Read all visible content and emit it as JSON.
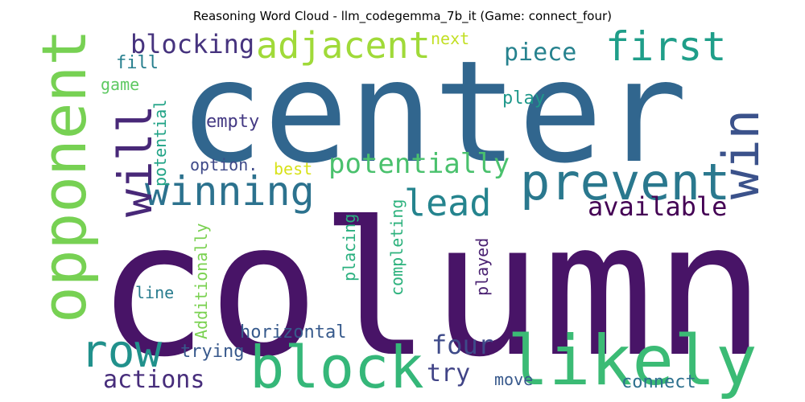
{
  "title": "Reasoning Word Cloud - llm_codegemma_7b_it (Game: connect_four)",
  "words": [
    {
      "text": "column",
      "color": "#481467"
    },
    {
      "text": "center",
      "color": "#31668e"
    },
    {
      "text": "opponent",
      "color": "#77d153"
    },
    {
      "text": "likely",
      "color": "#3bbb75"
    },
    {
      "text": "block",
      "color": "#35b779"
    },
    {
      "text": "prevent",
      "color": "#2a788e"
    },
    {
      "text": "win",
      "color": "#3b528b"
    },
    {
      "text": "winning",
      "color": "#2c728e"
    },
    {
      "text": "will",
      "color": "#482878"
    },
    {
      "text": "row",
      "color": "#21918c"
    },
    {
      "text": "first",
      "color": "#1f9e89"
    },
    {
      "text": "adjacent",
      "color": "#a0da39"
    },
    {
      "text": "lead",
      "color": "#25848e"
    },
    {
      "text": "blocking",
      "color": "#46337e"
    },
    {
      "text": "potentially",
      "color": "#4ac16d"
    },
    {
      "text": "available",
      "color": "#440154"
    },
    {
      "text": "piece",
      "color": "#26828e"
    },
    {
      "text": "four",
      "color": "#3e4a89"
    },
    {
      "text": "actions",
      "color": "#472d7b"
    },
    {
      "text": "try",
      "color": "#414487"
    },
    {
      "text": "horizontal",
      "color": "#375a8c"
    },
    {
      "text": "trying",
      "color": "#38598c"
    },
    {
      "text": "empty",
      "color": "#443983"
    },
    {
      "text": "connect",
      "color": "#2d708e"
    },
    {
      "text": "move",
      "color": "#38598c"
    },
    {
      "text": "play",
      "color": "#1f988b"
    },
    {
      "text": "next",
      "color": "#c2df23"
    },
    {
      "text": "fill",
      "color": "#277f8e"
    },
    {
      "text": "game",
      "color": "#5ec962"
    },
    {
      "text": "best",
      "color": "#d8e219"
    },
    {
      "text": "option.",
      "color": "#3e4989"
    },
    {
      "text": "line",
      "color": "#287c8e"
    },
    {
      "text": "potential",
      "color": "#20a386"
    },
    {
      "text": "Additionally",
      "color": "#7ad151"
    },
    {
      "text": "placing",
      "color": "#2ab07f"
    },
    {
      "text": "completing",
      "color": "#2db27d"
    },
    {
      "text": "played",
      "color": "#481f70"
    }
  ]
}
